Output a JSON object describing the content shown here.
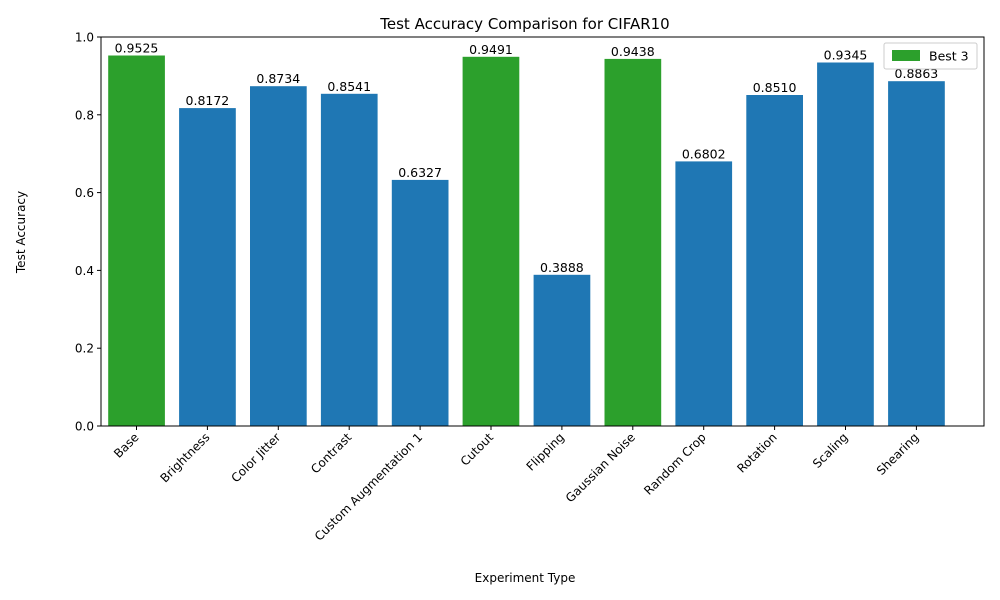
{
  "chart_data": {
    "type": "bar",
    "title": "Test Accuracy Comparison for CIFAR10",
    "xlabel": "Experiment Type",
    "ylabel": "Test Accuracy",
    "ylim": [
      0,
      1
    ],
    "yticks": [
      "0.0",
      "0.2",
      "0.4",
      "0.6",
      "0.8",
      "1.0"
    ],
    "categories": [
      "Base",
      "Brightness",
      "Color Jitter",
      "Contrast",
      "Custom Augmentation 1",
      "Cutout",
      "Flipping",
      "Gaussian Noise",
      "Random Crop",
      "Rotation",
      "Scaling",
      "Shearing"
    ],
    "values": [
      0.9525,
      0.8172,
      0.8734,
      0.8541,
      0.6327,
      0.9491,
      0.3888,
      0.9438,
      0.6802,
      0.851,
      0.9345,
      0.8863
    ],
    "value_labels": [
      "0.9525",
      "0.8172",
      "0.8734",
      "0.8541",
      "0.6327",
      "0.9491",
      "0.3888",
      "0.9438",
      "0.6802",
      "0.8510",
      "0.9345",
      "0.8863"
    ],
    "highlighted": [
      "Base",
      "Cutout",
      "Gaussian Noise"
    ],
    "legend": {
      "label": "Best 3",
      "placement": "top-right"
    },
    "colors": {
      "default": "#1f77b4",
      "highlight": "#2ca02c"
    },
    "grid": false
  }
}
